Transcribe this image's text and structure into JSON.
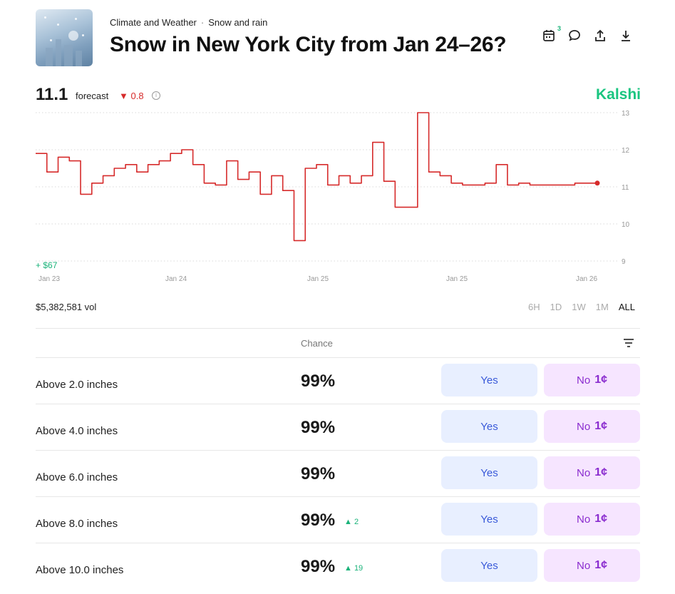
{
  "header": {
    "category": "Climate and Weather",
    "separator": "·",
    "subcategory": "Snow and rain",
    "title": "Snow in New York City from Jan 24–26?",
    "calendar_badge": "3"
  },
  "forecast": {
    "value": "11.1",
    "label": "forecast",
    "change": "▼ 0.8",
    "info": "i"
  },
  "brand": "Kalshi",
  "chart": {
    "gain_label": "+ $67",
    "x_tick_labels": [
      "Jan 23",
      "Jan 24",
      "Jan 25",
      "Jan 25",
      "Jan 26"
    ],
    "y_tick_labels": [
      "13",
      "12",
      "11",
      "10",
      "9"
    ],
    "line_color": "#d62b2b",
    "grid_color": "#d9d9d9"
  },
  "chart_data": {
    "type": "line",
    "title": "",
    "xlabel": "",
    "ylabel": "",
    "ylim": [
      9,
      13
    ],
    "grid": true,
    "x": [
      0,
      2,
      4,
      6,
      8,
      10,
      12,
      14,
      16,
      18,
      20,
      22,
      24,
      26,
      28,
      30,
      32,
      34,
      36,
      38,
      40,
      42,
      44,
      46,
      48,
      50,
      52,
      54,
      56,
      58,
      60,
      62,
      64,
      66,
      68,
      70,
      72,
      74,
      76,
      78,
      80,
      82,
      84,
      86,
      88,
      90,
      92,
      94,
      96,
      98,
      100
    ],
    "series": [
      {
        "values": [
          11.9,
          11.4,
          11.8,
          11.7,
          10.8,
          11.1,
          11.3,
          11.5,
          11.6,
          11.4,
          11.6,
          11.7,
          11.9,
          12.0,
          11.6,
          11.1,
          11.05,
          11.7,
          11.2,
          11.4,
          10.8,
          11.3,
          10.9,
          9.55,
          11.5,
          11.6,
          11.05,
          11.3,
          11.1,
          11.3,
          12.2,
          11.15,
          10.45,
          10.45,
          13.0,
          11.4,
          11.3,
          11.1,
          11.05,
          11.05,
          11.1,
          11.6,
          11.05,
          11.1,
          11.05,
          11.05,
          11.05,
          11.05,
          11.1,
          11.1,
          11.1
        ]
      }
    ]
  },
  "volume": "$5,382,581 vol",
  "time_ranges": [
    {
      "label": "6H",
      "active": false
    },
    {
      "label": "1D",
      "active": false
    },
    {
      "label": "1W",
      "active": false
    },
    {
      "label": "1M",
      "active": false
    },
    {
      "label": "ALL",
      "active": true
    }
  ],
  "table": {
    "chance_header": "Chance",
    "rows": [
      {
        "label": "Above 2.0 inches",
        "chance": "99%",
        "delta": "",
        "yes": "Yes",
        "no": "No",
        "no_price": "1¢"
      },
      {
        "label": "Above 4.0 inches",
        "chance": "99%",
        "delta": "",
        "yes": "Yes",
        "no": "No",
        "no_price": "1¢"
      },
      {
        "label": "Above 6.0 inches",
        "chance": "99%",
        "delta": "",
        "yes": "Yes",
        "no": "No",
        "no_price": "1¢"
      },
      {
        "label": "Above 8.0 inches",
        "chance": "99%",
        "delta": "▲ 2",
        "yes": "Yes",
        "no": "No",
        "no_price": "1¢"
      },
      {
        "label": "Above 10.0 inches",
        "chance": "99%",
        "delta": "▲ 19",
        "yes": "Yes",
        "no": "No",
        "no_price": "1¢"
      }
    ]
  },
  "icons": [
    "calendar-icon",
    "comment-icon",
    "share-icon",
    "download-icon",
    "sort-icon"
  ]
}
